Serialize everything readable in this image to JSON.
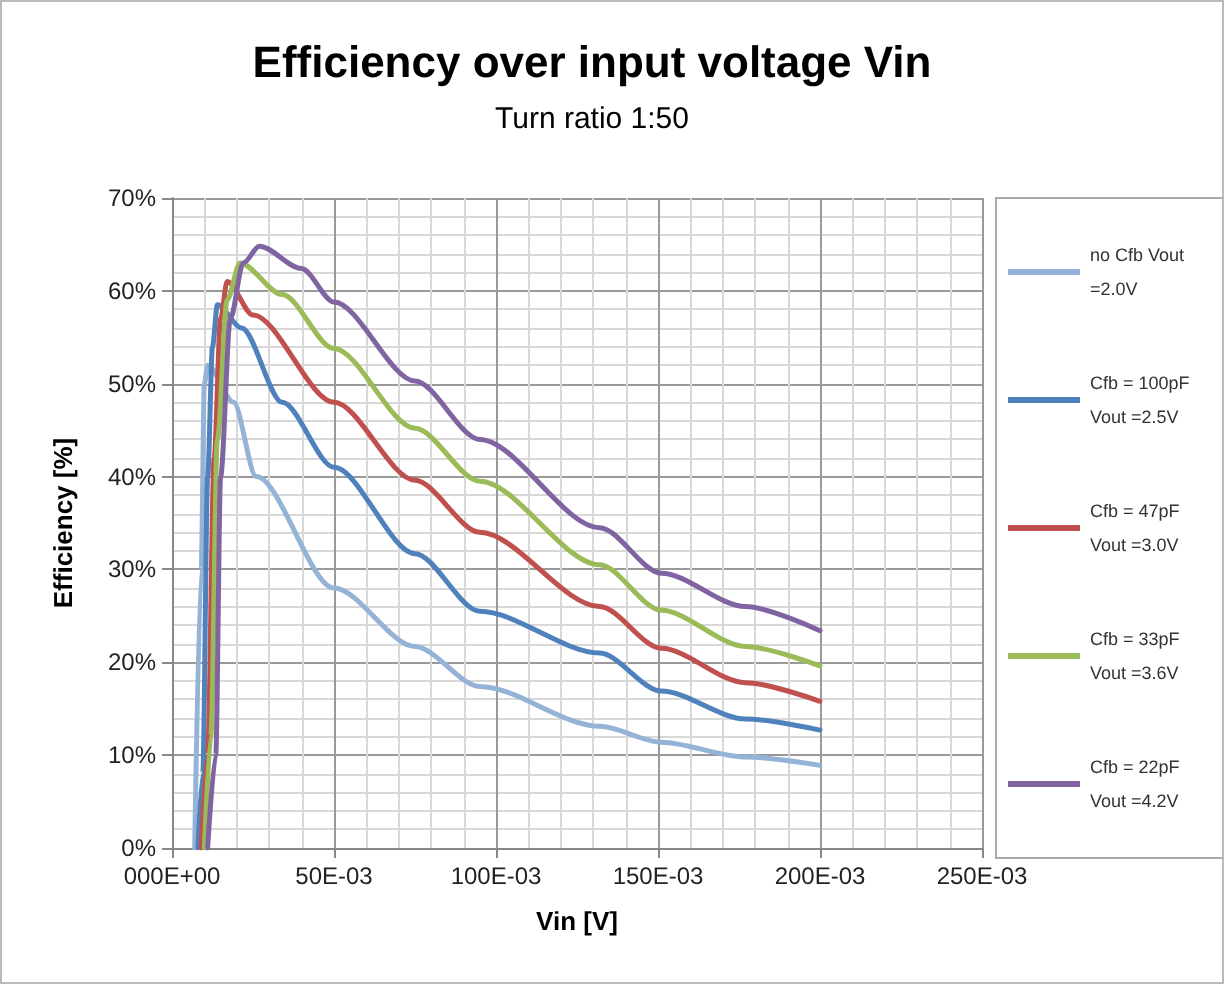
{
  "chart_data": {
    "type": "line",
    "title": "Efficiency over input voltage Vin",
    "subtitle": "Turn ratio 1:50",
    "xlabel": "Vin [V]",
    "ylabel": "Efficiency [%]",
    "series": [
      {
        "name": "no Cfb Vout =2.0V",
        "color": "#95b3d7",
        "x": [
          0.007,
          0.009,
          0.01,
          0.011,
          0.019,
          0.026,
          0.05,
          0.075,
          0.095,
          0.132,
          0.151,
          0.177,
          0.2
        ],
        "values": [
          0,
          30,
          50,
          52,
          48,
          40,
          28,
          21.7,
          17.4,
          13.1,
          11.4,
          9.8,
          8.9
        ]
      },
      {
        "name": "Cfb = 100pF Vout =2.5V",
        "color": "#4f81bd",
        "x": [
          0.008,
          0.0095,
          0.011,
          0.0125,
          0.014,
          0.0215,
          0.034,
          0.05,
          0.075,
          0.095,
          0.132,
          0.151,
          0.177,
          0.2
        ],
        "values": [
          0,
          8,
          40,
          54,
          58.5,
          56,
          48,
          41,
          31.7,
          25.5,
          21,
          16.9,
          13.9,
          12.7
        ]
      },
      {
        "name": "Cfb = 47pF Vout =3.0V",
        "color": "#c0504d",
        "x": [
          0.009,
          0.011,
          0.013,
          0.015,
          0.017,
          0.025,
          0.05,
          0.075,
          0.095,
          0.132,
          0.151,
          0.177,
          0.2
        ],
        "values": [
          0,
          10,
          42,
          57,
          61,
          57.4,
          48,
          39.6,
          34,
          26,
          21.5,
          17.8,
          15.8
        ]
      },
      {
        "name": "Cfb = 33pF Vout =3.6V",
        "color": "#9bbb59",
        "x": [
          0.01,
          0.012,
          0.014,
          0.017,
          0.021,
          0.034,
          0.05,
          0.075,
          0.095,
          0.132,
          0.151,
          0.177,
          0.2
        ],
        "values": [
          0,
          12,
          44,
          59,
          63,
          59.6,
          53.8,
          45.2,
          39.5,
          30.5,
          25.6,
          21.7,
          19.6
        ]
      },
      {
        "name": "Cfb = 22pF Vout =4.2V",
        "color": "#8064a2",
        "x": [
          0.011,
          0.0135,
          0.015,
          0.018,
          0.022,
          0.027,
          0.04,
          0.05,
          0.075,
          0.095,
          0.132,
          0.151,
          0.177,
          0.2
        ],
        "values": [
          0,
          10,
          40,
          57,
          63,
          64.8,
          62.4,
          58.8,
          50.3,
          44,
          34.5,
          29.6,
          26,
          23.4
        ]
      }
    ],
    "xlim": [
      0,
      0.25
    ],
    "xticks": [
      {
        "value": 0,
        "label": "000E+00"
      },
      {
        "value": 0.05,
        "label": "50E-03"
      },
      {
        "value": 0.1,
        "label": "100E-03"
      },
      {
        "value": 0.15,
        "label": "150E-03"
      },
      {
        "value": 0.2,
        "label": "200E-03"
      },
      {
        "value": 0.25,
        "label": "250E-03"
      }
    ],
    "ylim": [
      0,
      70
    ],
    "yticks": [
      {
        "value": 0,
        "label": "0%"
      },
      {
        "value": 10,
        "label": "10%"
      },
      {
        "value": 20,
        "label": "20%"
      },
      {
        "value": 30,
        "label": "30%"
      },
      {
        "value": 40,
        "label": "40%"
      },
      {
        "value": 50,
        "label": "50%"
      },
      {
        "value": 60,
        "label": "60%"
      },
      {
        "value": 70,
        "label": "70%"
      }
    ],
    "grid": true,
    "legend": "right",
    "marker": "none",
    "line_style": "solid"
  }
}
